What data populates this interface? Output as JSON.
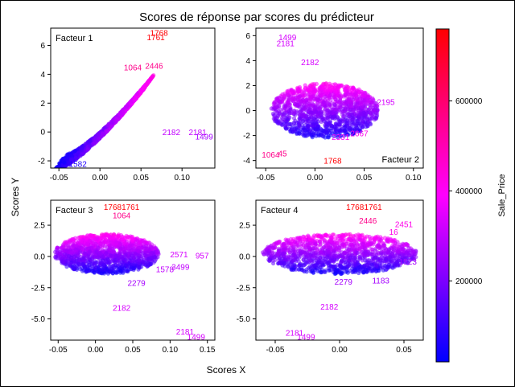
{
  "title": "Scores de réponse par scores du prédicteur",
  "xlabel": "Scores X",
  "ylabel": "Scores Y",
  "colorbar": {
    "label": "Sale_Price",
    "range": [
      20000,
      760000
    ],
    "ticks": [
      200000,
      400000,
      600000
    ],
    "tick_labels": [
      "200000",
      "400000",
      "600000"
    ],
    "colors": [
      "#0000ff",
      "#ff00ff",
      "#ff0000"
    ]
  },
  "chart_data": [
    {
      "type": "scatter",
      "panel_label": "Facteur 1",
      "label_position": "top-left",
      "xlim": [
        -0.06,
        0.14
      ],
      "ylim": [
        -2.5,
        7.2
      ],
      "xticks": [
        -0.05,
        0.0,
        0.05,
        0.1
      ],
      "xtick_labels": [
        "-0.05",
        "0.00",
        "0.05",
        "0.10"
      ],
      "yticks": [
        -2,
        0,
        2,
        4,
        6
      ],
      "ytick_labels": [
        "-2",
        "0",
        "2",
        "4",
        "6"
      ],
      "cluster": {
        "x_range": [
          -0.05,
          0.06
        ],
        "y_range": [
          -2.2,
          3.5
        ],
        "shape": "diagonal"
      },
      "points": [
        {
          "label": "1768",
          "x": 0.072,
          "y": 6.9,
          "price": 755000
        },
        {
          "label": "1761",
          "x": 0.068,
          "y": 6.6,
          "price": 745000
        },
        {
          "label": "2446",
          "x": 0.066,
          "y": 4.6,
          "price": 560000
        },
        {
          "label": "1064",
          "x": 0.04,
          "y": 4.5,
          "price": 560000
        },
        {
          "label": "2182",
          "x": 0.087,
          "y": 0.0,
          "price": 300000
        },
        {
          "label": "2181",
          "x": 0.119,
          "y": 0.0,
          "price": 300000
        },
        {
          "label": "1499",
          "x": 0.127,
          "y": -0.3,
          "price": 260000
        },
        {
          "label": "1582",
          "x": -0.027,
          "y": -2.2,
          "price": 60000
        }
      ]
    },
    {
      "type": "scatter",
      "panel_label": "Facteur 2",
      "label_position": "bottom-right",
      "xlim": [
        -0.06,
        0.11
      ],
      "ylim": [
        -4.6,
        6.6
      ],
      "xticks": [
        -0.05,
        0.0,
        0.05,
        0.1
      ],
      "xtick_labels": [
        "-0.05",
        "0.00",
        "0.05",
        "0.10"
      ],
      "yticks": [
        -4,
        -2,
        0,
        2,
        4,
        6
      ],
      "ytick_labels": [
        "-4",
        "-2",
        "0",
        "2",
        "4",
        "6"
      ],
      "cluster": {
        "x_range": [
          -0.045,
          0.065
        ],
        "y_range": [
          -2.2,
          2.2
        ],
        "shape": "ellipse"
      },
      "points": [
        {
          "label": "1499",
          "x": -0.028,
          "y": 5.9,
          "price": 330000
        },
        {
          "label": "2181",
          "x": -0.03,
          "y": 5.4,
          "price": 330000
        },
        {
          "label": "2182",
          "x": -0.005,
          "y": 3.9,
          "price": 330000
        },
        {
          "label": "2195",
          "x": 0.072,
          "y": 0.7,
          "price": 330000
        },
        {
          "label": "2667",
          "x": 0.045,
          "y": -1.8,
          "price": 420000
        },
        {
          "label": "2331",
          "x": 0.026,
          "y": -2.1,
          "price": 400000
        },
        {
          "label": "1064",
          "x": -0.045,
          "y": -3.5,
          "price": 560000
        },
        {
          "label": "45",
          "x": -0.033,
          "y": -3.4,
          "price": 560000
        },
        {
          "label": "1768",
          "x": 0.018,
          "y": -4.0,
          "price": 755000
        }
      ]
    },
    {
      "type": "scatter",
      "panel_label": "Facteur 3",
      "label_position": "top-left",
      "xlim": [
        -0.06,
        0.16
      ],
      "ylim": [
        -6.7,
        4.5
      ],
      "xticks": [
        -0.05,
        0.0,
        0.05,
        0.1,
        0.15
      ],
      "xtick_labels": [
        "-0.05",
        "0.00",
        "0.05",
        "0.10",
        "0.15"
      ],
      "yticks": [
        -5,
        -2.5,
        0,
        2.5
      ],
      "ytick_labels": [
        "-5.0",
        "-2.5",
        "0.0",
        "2.5"
      ],
      "cluster": {
        "x_range": [
          -0.055,
          0.085
        ],
        "y_range": [
          -1.4,
          1.8
        ],
        "shape": "ellipse"
      },
      "points": [
        {
          "label": "1768",
          "x": 0.023,
          "y": 4.0,
          "price": 755000
        },
        {
          "label": "1761",
          "x": 0.047,
          "y": 4.0,
          "price": 745000
        },
        {
          "label": "1064",
          "x": 0.035,
          "y": 3.3,
          "price": 560000
        },
        {
          "label": "2571",
          "x": 0.112,
          "y": 0.2,
          "price": 330000
        },
        {
          "label": "957",
          "x": 0.143,
          "y": 0.1,
          "price": 330000
        },
        {
          "label": "3499",
          "x": 0.114,
          "y": -0.8,
          "price": 300000
        },
        {
          "label": "1578",
          "x": 0.093,
          "y": -1.0,
          "price": 300000
        },
        {
          "label": "2279",
          "x": 0.055,
          "y": -2.1,
          "price": 260000
        },
        {
          "label": "2182",
          "x": 0.035,
          "y": -4.1,
          "price": 330000
        },
        {
          "label": "2181",
          "x": 0.12,
          "y": -6.0,
          "price": 330000
        },
        {
          "label": "1499",
          "x": 0.135,
          "y": -6.4,
          "price": 330000
        }
      ]
    },
    {
      "type": "scatter",
      "panel_label": "Facteur 4",
      "label_position": "top-left",
      "xlim": [
        -0.065,
        0.065
      ],
      "ylim": [
        -6.7,
        4.5
      ],
      "xticks": [
        -0.05,
        0.0,
        0.05
      ],
      "xtick_labels": [
        "-0.05",
        "0.00",
        "0.05"
      ],
      "yticks": [
        -5,
        -2.5,
        0,
        2.5
      ],
      "ytick_labels": [
        "-5.0",
        "-2.5",
        "0.0",
        "2.5"
      ],
      "cluster": {
        "x_range": [
          -0.06,
          0.06
        ],
        "y_range": [
          -1.4,
          1.8
        ],
        "shape": "ellipse"
      },
      "points": [
        {
          "label": "1768",
          "x": 0.012,
          "y": 4.0,
          "price": 755000
        },
        {
          "label": "1761",
          "x": 0.026,
          "y": 4.0,
          "price": 745000
        },
        {
          "label": "2446",
          "x": 0.022,
          "y": 2.9,
          "price": 560000
        },
        {
          "label": "2451",
          "x": 0.05,
          "y": 2.6,
          "price": 420000
        },
        {
          "label": "16",
          "x": 0.042,
          "y": 2.0,
          "price": 420000
        },
        {
          "label": "2279",
          "x": 0.003,
          "y": -2.0,
          "price": 260000
        },
        {
          "label": "1183",
          "x": 0.032,
          "y": -1.9,
          "price": 260000
        },
        {
          "label": "1523",
          "x": 0.053,
          "y": -0.4,
          "price": 260000
        },
        {
          "label": "2182",
          "x": -0.008,
          "y": -4.0,
          "price": 330000
        },
        {
          "label": "2181",
          "x": -0.035,
          "y": -6.1,
          "price": 330000
        },
        {
          "label": "1499",
          "x": -0.026,
          "y": -6.4,
          "price": 330000
        }
      ]
    }
  ]
}
